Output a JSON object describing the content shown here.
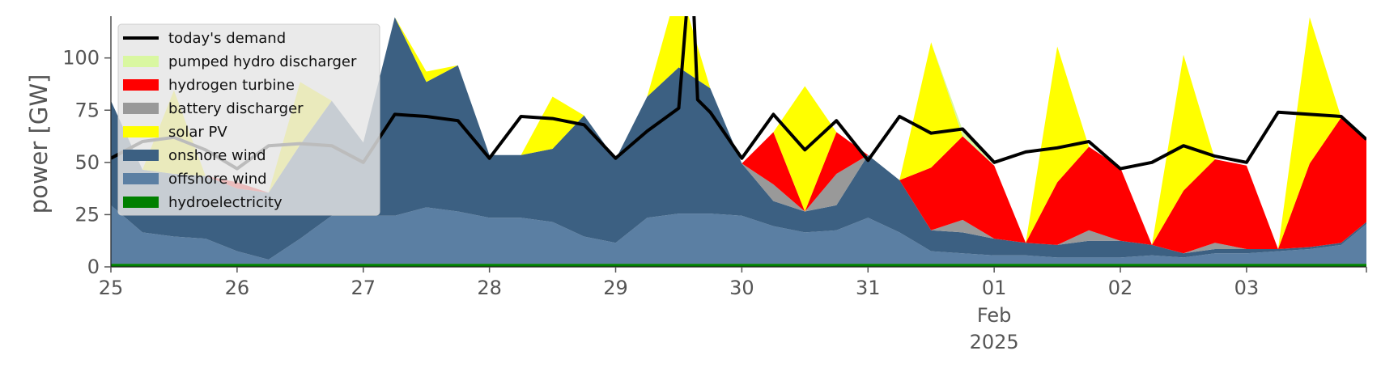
{
  "chart_data": {
    "type": "area",
    "ylabel": "power [GW]",
    "ylim": [
      0,
      120
    ],
    "yticks": [
      0,
      25,
      50,
      75,
      100
    ],
    "xlim": [
      0,
      9.95
    ],
    "xticks": [
      {
        "x": 0,
        "label": "25"
      },
      {
        "x": 1,
        "label": "26"
      },
      {
        "x": 2,
        "label": "27"
      },
      {
        "x": 3,
        "label": "28"
      },
      {
        "x": 4,
        "label": "29"
      },
      {
        "x": 5,
        "label": "30"
      },
      {
        "x": 6,
        "label": "31"
      },
      {
        "x": 7,
        "label": "01",
        "sub": [
          "Feb",
          "2025"
        ]
      },
      {
        "x": 8,
        "label": "02"
      },
      {
        "x": 9,
        "label": "03"
      }
    ],
    "grid": false,
    "legend_position": "top-left",
    "x": [
      0,
      0.25,
      0.5,
      0.75,
      1,
      1.25,
      1.5,
      1.75,
      2,
      2.25,
      2.5,
      2.75,
      3,
      3.25,
      3.5,
      3.75,
      4,
      4.25,
      4.5,
      4.75,
      5,
      5.25,
      5.5,
      5.75,
      6,
      6.25,
      6.5,
      6.75,
      7,
      7.25,
      7.5,
      7.75,
      8,
      8.25,
      8.5,
      8.75,
      9,
      9.25,
      9.5,
      9.75,
      9.95
    ],
    "series": [
      {
        "name": "hydroelectricity",
        "color": "#008000",
        "values": [
          1.5,
          1.5,
          1.5,
          1.5,
          1.5,
          1.5,
          1.5,
          1.5,
          1.5,
          1.5,
          1.5,
          1.5,
          1.5,
          1.5,
          1.5,
          1.5,
          1.5,
          1.5,
          1.5,
          1.5,
          1.5,
          1.5,
          1.5,
          1.5,
          1.5,
          1.5,
          1.5,
          1.5,
          1.5,
          1.5,
          1.5,
          1.5,
          1.5,
          1.5,
          1.5,
          1.5,
          1.5,
          1.5,
          1.5,
          1.5,
          1.5
        ]
      },
      {
        "name": "offshore wind",
        "color": "#5b7fa3",
        "values": [
          28,
          15,
          13,
          12,
          6,
          2,
          12,
          23,
          23,
          23,
          27,
          25,
          22,
          22,
          20,
          13,
          10,
          22,
          24,
          24,
          23,
          18,
          15,
          16,
          22,
          15,
          6,
          5,
          4,
          4,
          3,
          3,
          3,
          4,
          3,
          5,
          5,
          6,
          7,
          9,
          19
        ]
      },
      {
        "name": "onshore wind",
        "color": "#3c6082",
        "values": [
          50,
          30,
          30,
          30,
          30,
          32,
          45,
          55,
          35,
          95,
          60,
          70,
          30,
          30,
          35,
          58,
          40,
          58,
          70,
          60,
          25,
          12,
          10,
          12,
          30,
          25,
          10,
          10,
          8,
          6,
          6,
          8,
          8,
          5,
          2,
          2,
          2,
          1,
          1,
          1,
          1
        ]
      },
      {
        "name": "battery discharger",
        "color": "#999999",
        "values": [
          0,
          0,
          0,
          0,
          0,
          0,
          0,
          0,
          0,
          0,
          0,
          0,
          0,
          0,
          0,
          0,
          0,
          0,
          0,
          0,
          0,
          8,
          0,
          15,
          0,
          0,
          0,
          6,
          0,
          0,
          0,
          5,
          0,
          0,
          0,
          3,
          0,
          0,
          0,
          0,
          0
        ]
      },
      {
        "name": "hydrogen turbine",
        "color": "#ff0000",
        "values": [
          0,
          0,
          0,
          0,
          3,
          0,
          0,
          0,
          0,
          0,
          0,
          0,
          0,
          0,
          0,
          0,
          0,
          0,
          0,
          0,
          0,
          25,
          0,
          20,
          0,
          0,
          30,
          40,
          35,
          0,
          30,
          40,
          35,
          0,
          30,
          40,
          40,
          0,
          40,
          60,
          40
        ]
      },
      {
        "name": "solar PV",
        "color": "#ffff00",
        "values": [
          0,
          0,
          40,
          0,
          0,
          0,
          30,
          0,
          0,
          0,
          5,
          0,
          0,
          0,
          25,
          0,
          0,
          0,
          40,
          0,
          0,
          0,
          60,
          0,
          0,
          0,
          60,
          0,
          0,
          0,
          65,
          0,
          0,
          0,
          65,
          0,
          0,
          0,
          70,
          0,
          0
        ]
      },
      {
        "name": "pumped hydro discharger",
        "color": "#d9f7a1",
        "values": [
          0,
          0,
          0,
          0,
          0,
          0,
          0,
          0,
          0,
          0,
          0,
          0,
          0,
          0,
          0,
          0,
          0,
          0,
          0,
          0,
          0,
          0,
          0,
          0,
          0,
          0,
          0,
          3,
          0,
          0,
          0,
          0,
          0,
          0,
          0,
          0,
          0,
          0,
          0,
          0,
          0
        ]
      }
    ],
    "demand": {
      "name": "today's demand",
      "color": "#000000",
      "x": [
        0,
        0.25,
        0.5,
        0.75,
        1,
        1.25,
        1.5,
        1.75,
        2,
        2.25,
        2.5,
        2.75,
        3,
        3.25,
        3.5,
        3.75,
        4,
        4.25,
        4.5,
        4.6,
        4.65,
        4.75,
        5,
        5.25,
        5.5,
        5.75,
        6,
        6.25,
        6.5,
        6.75,
        7,
        7.25,
        7.5,
        7.75,
        8,
        8.25,
        8.5,
        8.75,
        9,
        9.25,
        9.5,
        9.75,
        9.95
      ],
      "values": [
        52,
        60,
        62,
        56,
        47,
        58,
        59,
        58,
        50,
        73,
        72,
        70,
        52,
        72,
        71,
        68,
        52,
        65,
        76,
        150,
        80,
        74,
        52,
        73,
        56,
        70,
        51,
        72,
        64,
        66,
        50,
        55,
        57,
        60,
        47,
        50,
        58,
        53,
        50,
        74,
        73,
        72,
        61
      ]
    },
    "legend": [
      {
        "label": "today's demand",
        "kind": "line",
        "color": "#000000"
      },
      {
        "label": "pumped hydro discharger",
        "kind": "patch",
        "color": "#d9f7a1"
      },
      {
        "label": "hydrogen turbine",
        "kind": "patch",
        "color": "#ff0000"
      },
      {
        "label": "battery discharger",
        "kind": "patch",
        "color": "#999999"
      },
      {
        "label": "solar PV",
        "kind": "patch",
        "color": "#ffff00"
      },
      {
        "label": "onshore wind",
        "kind": "patch",
        "color": "#3c6082"
      },
      {
        "label": "offshore wind",
        "kind": "patch",
        "color": "#5b7fa3"
      },
      {
        "label": "hydroelectricity",
        "kind": "patch",
        "color": "#008000"
      }
    ]
  }
}
